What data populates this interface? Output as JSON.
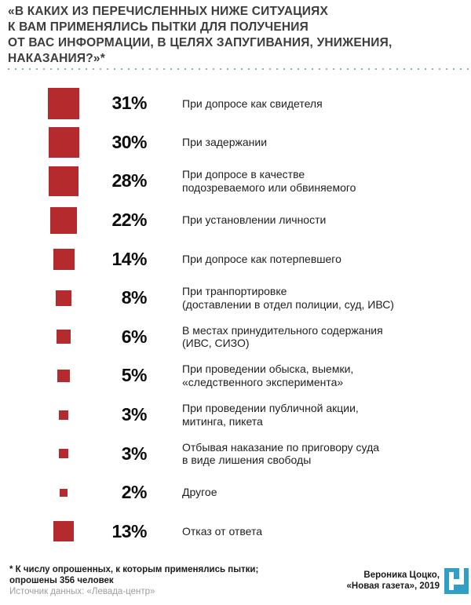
{
  "title": {
    "text": "«В КАКИХ ИЗ ПЕРЕЧИСЛЕННЫХ НИЖЕ СИТУАЦИЯХ\nК ВАМ ПРИМЕНЯЛИСЬ ПЫТКИ ДЛЯ ПОЛУЧЕНИЯ\nОТ ВАС ИНФОРМАЦИИ, В ЦЕЛЯХ ЗАПУГИВАНИЯ, УНИЖЕНИЯ,\nНАКАЗАНИЯ?»*"
  },
  "chart_data": {
    "type": "bar",
    "variant": "square-area-pictogram",
    "unit": "%",
    "title": "«В каких из перечисленных ниже ситуациях к вам применялись пытки для получения от вас информации, в целях запугивания, унижения, наказания?»*",
    "categories": [
      "При допросе как свидетеля",
      "При задержании",
      "При допросе в качестве\nподозреваемого или обвиняемого",
      "При установлении личности",
      "При допросе как потерпевшего",
      "При транпортировке\n(доставлении в отдел полиции, суд, ИВС)",
      "В местах принудительного содержания\n(ИВС, СИЗО)",
      "При проведении обыска, выемки,\n«следственного эксперимента»",
      "При проведении публичной акции,\nмитинга, пикета",
      "Отбывая наказание по приговору суда\nв виде лишения свободы",
      "Другое",
      "Отказ от ответа"
    ],
    "values": [
      31,
      30,
      28,
      22,
      14,
      8,
      6,
      5,
      3,
      3,
      2,
      13
    ],
    "value_labels": [
      "31%",
      "30%",
      "28%",
      "22%",
      "14%",
      "8%",
      "6%",
      "5%",
      "3%",
      "3%",
      "2%",
      "13%"
    ],
    "xlabel": "",
    "ylabel": "",
    "legend": "none",
    "grid": "off",
    "marker_color": "#b42a2d",
    "marker_sizing": "side proportional to sqrt(value), ~7.2px per sqrt(%)"
  },
  "footer": {
    "note": "* К числу опрошенных, к которым применялись пытки;\nопрошены 356 человек",
    "source": "Источник данных: «Левада-центр»",
    "credit": "Вероника Цоцко,\n«Новая газета», 2019",
    "logo": "novaya-gazeta-logo"
  },
  "colors": {
    "accent_red": "#b42a2d",
    "title_gray": "#3d3d3f",
    "divider_dots_teal": "#8fb2b8",
    "percent_black": "#0d0d0d",
    "label_dark": "#1e1e1e",
    "source_gray": "#9c9c9c",
    "logo_blue": "#2f9fc6"
  }
}
